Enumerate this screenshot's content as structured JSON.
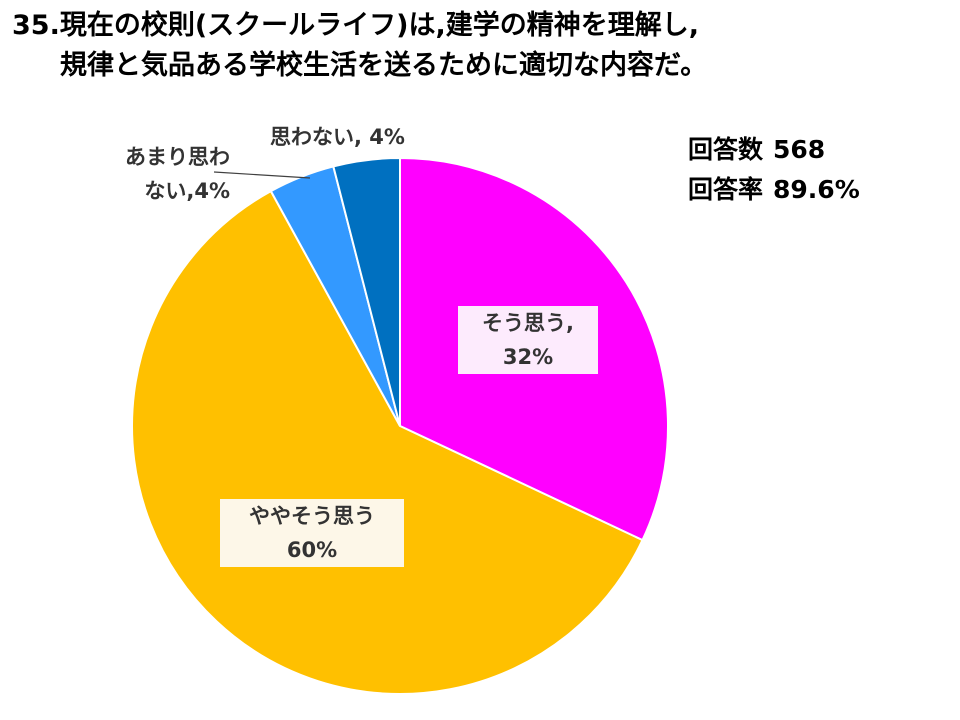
{
  "title": {
    "line1": "35.現在の校則(スクールライフ)は,建学の精神を理解し,",
    "line2": "規律と気品ある学校生活を送るために適切な内容だ。"
  },
  "stats": {
    "responses_label": "回答数",
    "responses_value": "568",
    "rate_label": "回答率",
    "rate_value": "89.6%"
  },
  "chart_data": {
    "type": "pie",
    "start_angle_deg": 0,
    "direction": "clockwise",
    "slices": [
      {
        "label": "そう思う",
        "value": 32,
        "display": "そう思う,",
        "pct_text": "32%",
        "color": "#FF00FF",
        "label_bg": "#FDEBFD"
      },
      {
        "label": "ややそう思う",
        "value": 60,
        "display": "ややそう思う",
        "pct_text": "60%",
        "color": "#FFC000",
        "label_bg": "#FDF7E8"
      },
      {
        "label": "あまり思わない",
        "value": 4,
        "display_line1": "あまり思わ",
        "display_line2": "ない,4%",
        "color": "#3399FF"
      },
      {
        "label": "思わない",
        "value": 4,
        "display": "思わない, 4%",
        "color": "#0070C0"
      }
    ]
  }
}
